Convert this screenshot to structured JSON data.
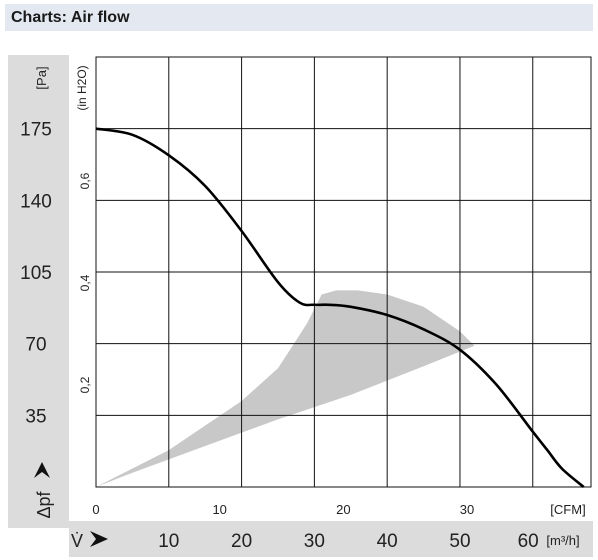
{
  "header": {
    "title": "Charts: Air flow"
  },
  "chart_data": {
    "type": "line",
    "title": "Charts: Air flow",
    "ylabel_pa": "[Pa]",
    "ylabel_inh2o": "(in H2O)",
    "pressure_symbol": "Δpf",
    "xlabel_cfm": "[CFM]",
    "xlabel_m3h": "[m³/h]",
    "flow_symbol": "V̇",
    "y_pa_ticks": [
      175,
      140,
      105,
      70,
      35
    ],
    "y_inh2o_ticks": [
      "0,6",
      "0,4",
      "0,2"
    ],
    "y_inh2o_values": [
      0.6,
      0.4,
      0.2
    ],
    "x_cfm_ticks": [
      0,
      10,
      20,
      30
    ],
    "x_m3h_ticks": [
      10,
      20,
      30,
      40,
      50,
      60
    ],
    "xlim_m3h": [
      0,
      68
    ],
    "ylim_pa": [
      0,
      210
    ],
    "grid": true,
    "series": [
      {
        "x": [
          0,
          5,
          10,
          15,
          20,
          25,
          28,
          30,
          32,
          35,
          40,
          45,
          50,
          55,
          60,
          62,
          64,
          67
        ],
        "y": [
          175,
          172,
          162,
          147,
          125,
          100,
          90,
          89,
          89,
          88,
          84,
          77,
          67,
          50,
          27,
          18,
          9,
          0
        ]
      }
    ],
    "shaded_region": {
      "upper": {
        "x": [
          0,
          10,
          20,
          25,
          29,
          31,
          33,
          36,
          40,
          45,
          50,
          52
        ],
        "y": [
          0,
          18,
          42,
          58,
          80,
          94,
          96,
          96,
          94,
          88,
          76,
          69
        ]
      },
      "lower": {
        "x": [
          52,
          45,
          35,
          25,
          15,
          5,
          0
        ],
        "y": [
          69,
          59,
          45,
          33,
          20,
          7,
          0
        ]
      }
    }
  }
}
